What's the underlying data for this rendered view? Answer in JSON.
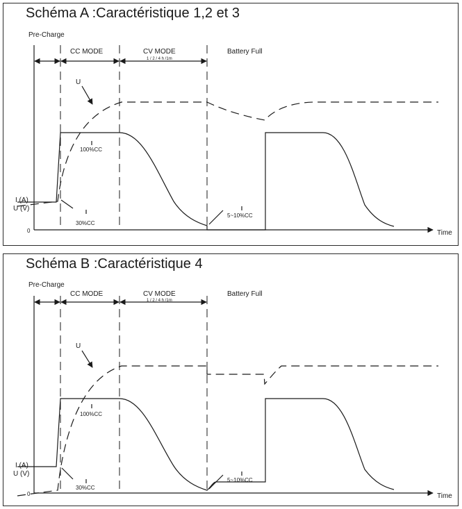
{
  "diagrams": [
    {
      "title": "Schéma A :Caractéristique 1,2 et 3",
      "labels": {
        "precharge": "Pre-Charge",
        "cc_mode": "CC MODE",
        "cv_mode": "CV MODE",
        "cv_times": "1 / 2 / 4 h /1m",
        "battery_full": "Battery Full",
        "u": "U",
        "cc100": "100%CC",
        "cc30": "30%CC",
        "cc510": "5~10%CC",
        "ia": "I (A)",
        "uv": "U (V)",
        "zero": "0",
        "time": "Time"
      }
    },
    {
      "title": "Schéma B :Caractéristique 4",
      "labels": {
        "precharge": "Pre-Charge",
        "cc_mode": "CC MODE",
        "cv_mode": "CV MODE",
        "cv_times": "1 / 2 / 4 h /1m",
        "battery_full": "Battery Full",
        "u": "U",
        "cc100": "100%CC",
        "cc30": "30%CC",
        "cc510": "5~10%CC",
        "ia": "I (A)",
        "uv": "U (V)",
        "zero": "0",
        "time": "Time"
      }
    }
  ]
}
